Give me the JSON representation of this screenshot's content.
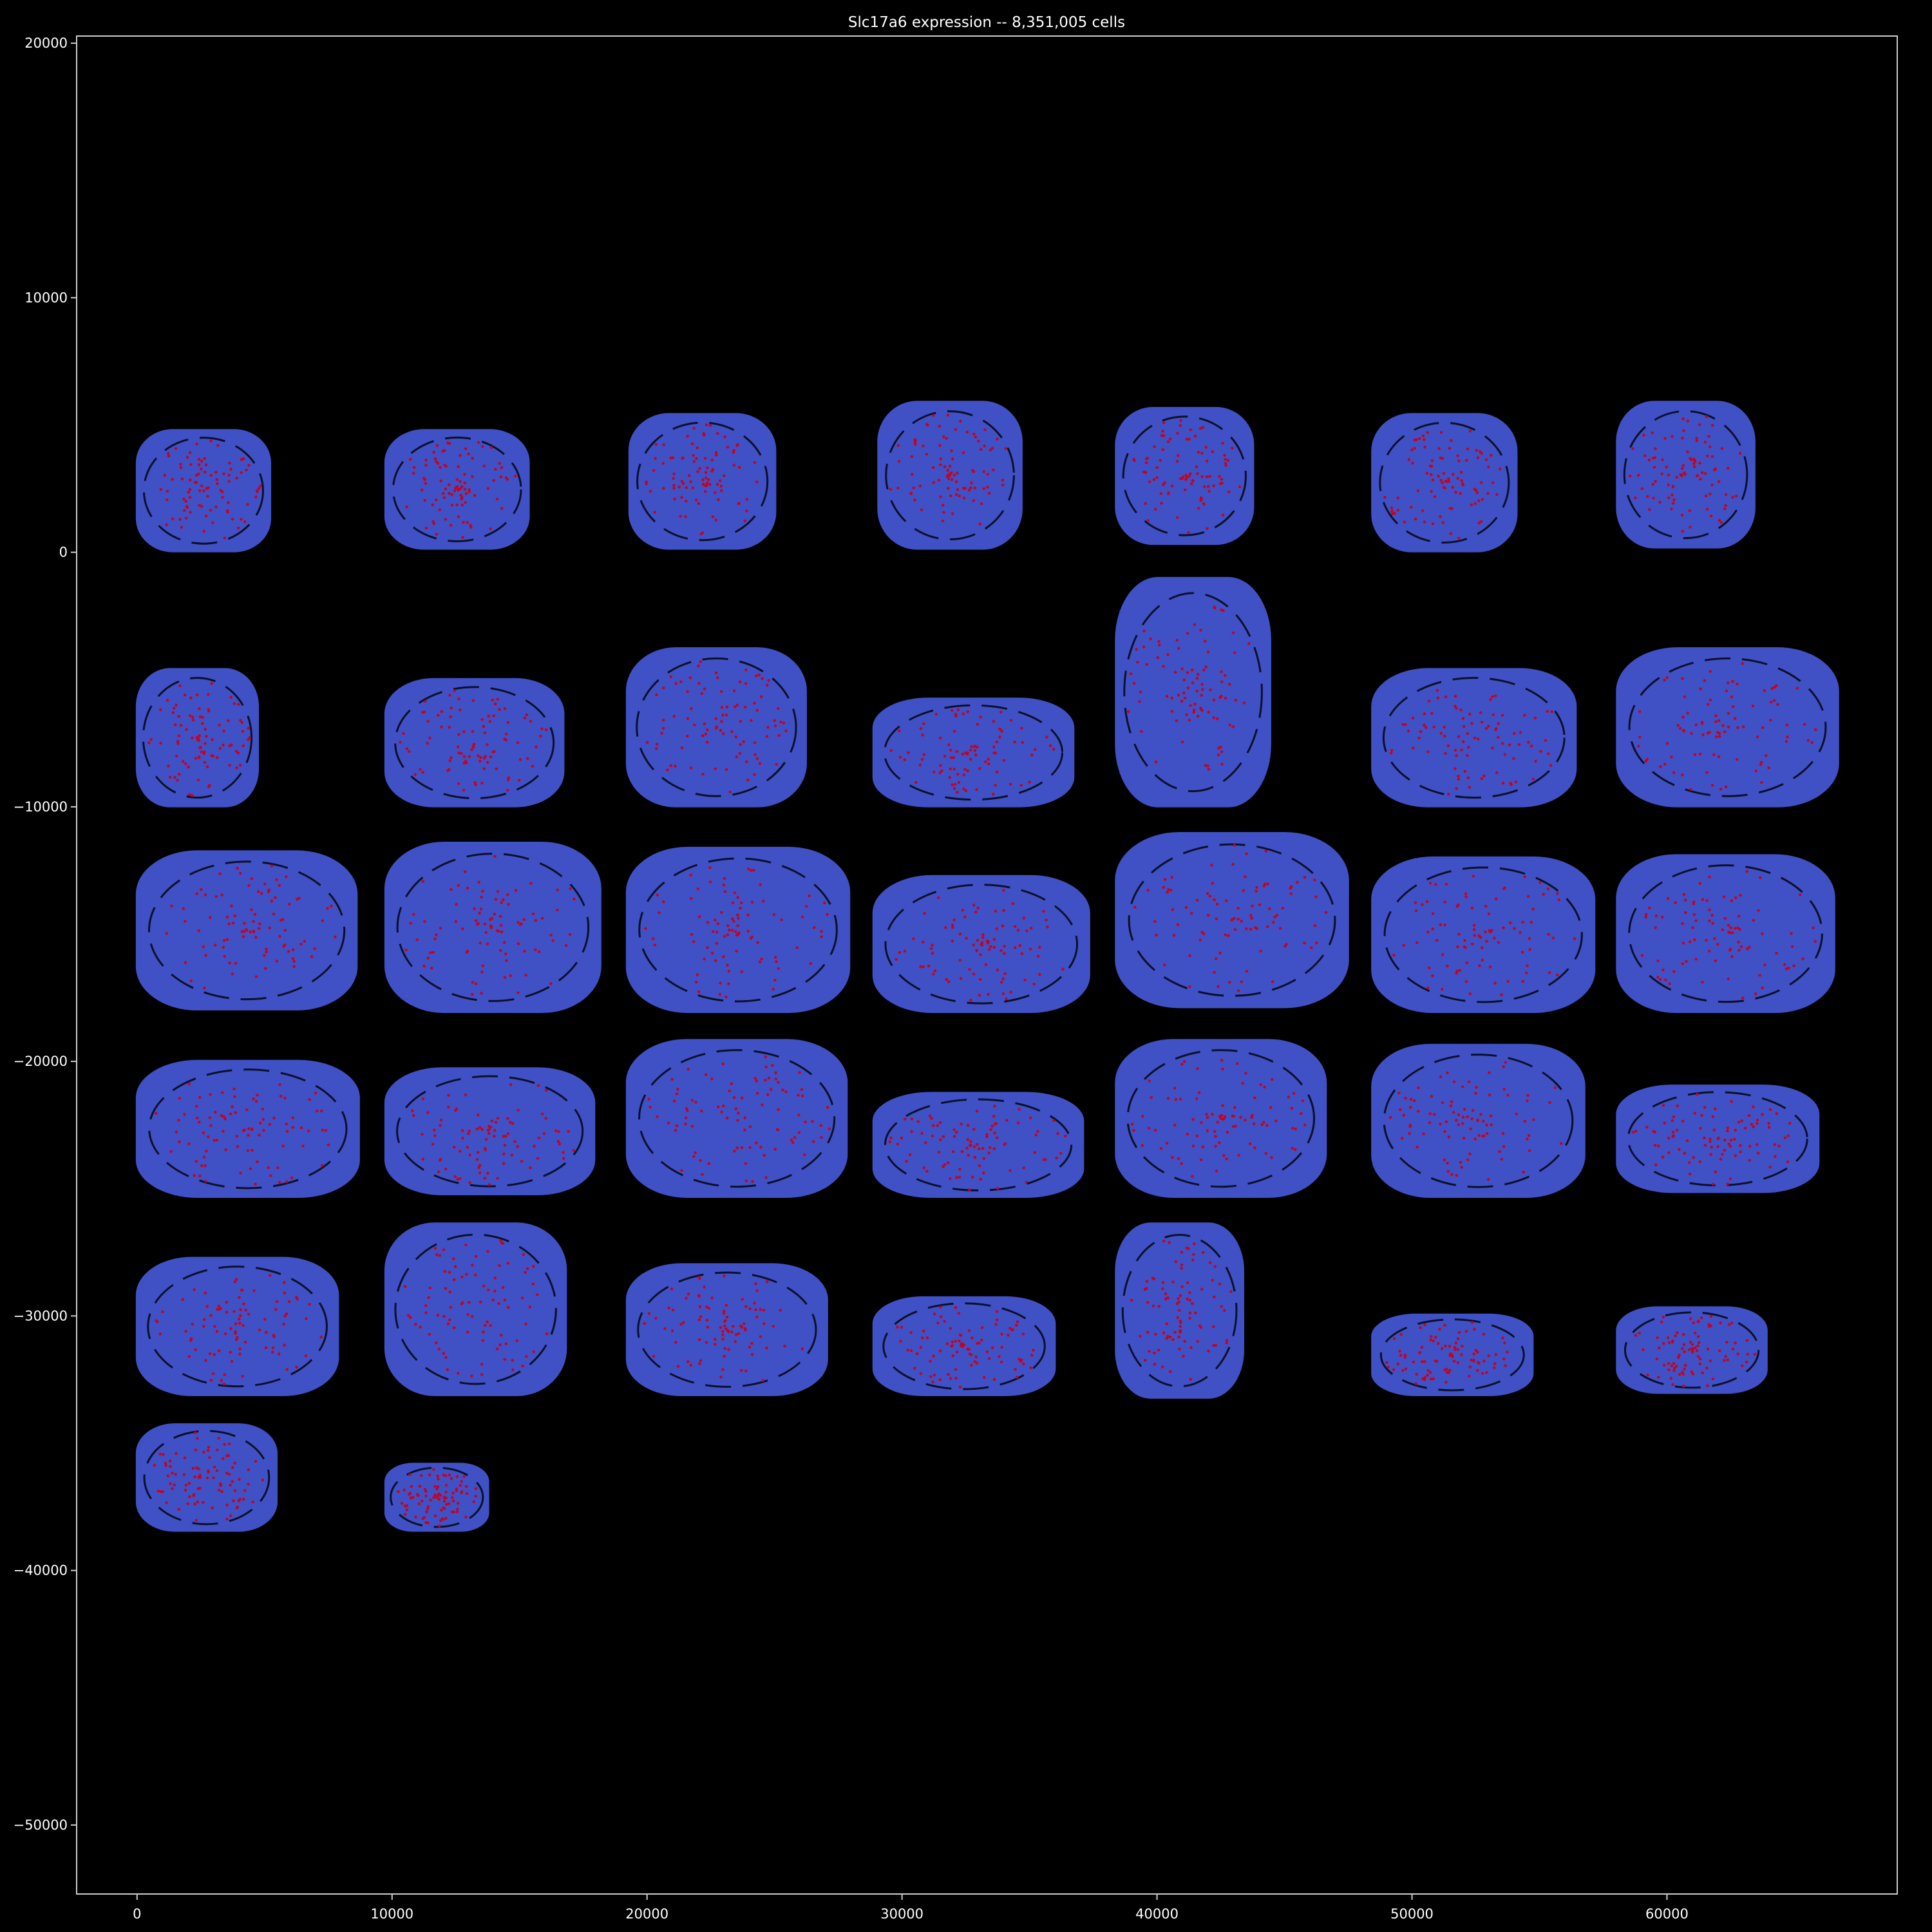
{
  "chart_data": {
    "type": "scatter",
    "title": "Slc17a6 expression -- 8,351,005 cells",
    "xlabel": "",
    "ylabel": "",
    "xlim": [
      -2370,
      69030
    ],
    "ylim": [
      -52710,
      20280
    ],
    "xticks": [
      0,
      10000,
      20000,
      30000,
      40000,
      50000,
      60000
    ],
    "xtick_labels": [
      "0",
      "10000",
      "20000",
      "30000",
      "40000",
      "50000",
      "60000"
    ],
    "yticks": [
      20000,
      10000,
      0,
      -10000,
      -20000,
      -30000,
      -40000,
      -50000
    ],
    "ytick_labels": [
      "20000",
      "10000",
      "0",
      "−10000",
      "−20000",
      "−30000",
      "−40000",
      "−50000"
    ],
    "grid": false,
    "background": "#000000",
    "colors": {
      "non_expressing": "#3f51c4",
      "expressing": "#c8001e",
      "axes": "#cccccc"
    },
    "series": [
      {
        "name": "",
        "role": "non-expressing cells",
        "color": "#3f51c4"
      },
      {
        "name": "",
        "role": "Slc17a6-expressing cells",
        "color": "#c8001e"
      }
    ],
    "sections": [
      {
        "x": [
          -50,
          5260
        ],
        "y": [
          0,
          4840
        ]
      },
      {
        "x": [
          9700,
          15400
        ],
        "y": [
          100,
          4840
        ]
      },
      {
        "x": [
          19270,
          25070
        ],
        "y": [
          100,
          5470
        ]
      },
      {
        "x": [
          29030,
          34730
        ],
        "y": [
          100,
          5950
        ]
      },
      {
        "x": [
          38350,
          43810
        ],
        "y": [
          290,
          5710
        ]
      },
      {
        "x": [
          48400,
          54140
        ],
        "y": [
          0,
          5470
        ]
      },
      {
        "x": [
          58000,
          63470
        ],
        "y": [
          150,
          5950
        ]
      },
      {
        "x": [
          -50,
          4780
        ],
        "y": [
          -10020,
          -4550
        ]
      },
      {
        "x": [
          9700,
          16760
        ],
        "y": [
          -10020,
          -4940
        ]
      },
      {
        "x": [
          19170,
          26270
        ],
        "y": [
          -10020,
          -3730
        ]
      },
      {
        "x": [
          28840,
          36760
        ],
        "y": [
          -10020,
          -5710
        ]
      },
      {
        "x": [
          38350,
          44480
        ],
        "y": [
          -10020,
          -970
        ]
      },
      {
        "x": [
          48400,
          56460
        ],
        "y": [
          -10020,
          -4550
        ]
      },
      {
        "x": [
          58000,
          66750
        ],
        "y": [
          -10020,
          -3730
        ]
      },
      {
        "x": [
          -50,
          8650
        ],
        "y": [
          -18000,
          -11710
        ]
      },
      {
        "x": [
          9700,
          18210
        ],
        "y": [
          -18100,
          -11370
        ]
      },
      {
        "x": [
          19170,
          27970
        ],
        "y": [
          -18100,
          -11570
        ]
      },
      {
        "x": [
          28840,
          37380
        ],
        "y": [
          -18100,
          -12680
        ]
      },
      {
        "x": [
          38350,
          47530
        ],
        "y": [
          -17910,
          -10990
        ]
      },
      {
        "x": [
          48400,
          57190
        ],
        "y": [
          -18100,
          -11950
        ]
      },
      {
        "x": [
          58000,
          66600
        ],
        "y": [
          -18100,
          -11860
        ]
      },
      {
        "x": [
          -50,
          8740
        ],
        "y": [
          -25360,
          -19940
        ]
      },
      {
        "x": [
          9700,
          17970
        ],
        "y": [
          -25260,
          -20230
        ]
      },
      {
        "x": [
          19170,
          27870
        ],
        "y": [
          -25360,
          -19120
        ]
      },
      {
        "x": [
          28840,
          37140
        ],
        "y": [
          -25360,
          -21200
        ]
      },
      {
        "x": [
          38350,
          46660
        ],
        "y": [
          -25360,
          -19120
        ]
      },
      {
        "x": [
          48400,
          56800
        ],
        "y": [
          -25360,
          -19310
        ]
      },
      {
        "x": [
          58000,
          65980
        ],
        "y": [
          -25170,
          -20910
        ]
      },
      {
        "x": [
          -50,
          7920
        ],
        "y": [
          -33150,
          -27680
        ]
      },
      {
        "x": [
          9700,
          16860
        ],
        "y": [
          -33150,
          -26330
        ]
      },
      {
        "x": [
          19170,
          27100
        ],
        "y": [
          -33150,
          -27930
        ]
      },
      {
        "x": [
          28840,
          36030
        ],
        "y": [
          -33150,
          -29230
        ]
      },
      {
        "x": [
          38350,
          43420
        ],
        "y": [
          -33250,
          -26330
        ]
      },
      {
        "x": [
          48400,
          54770
        ],
        "y": [
          -33150,
          -29910
        ]
      },
      {
        "x": [
          58000,
          63950
        ],
        "y": [
          -33060,
          -29620
        ]
      },
      {
        "x": [
          -50,
          5510
        ],
        "y": [
          -38480,
          -34220
        ]
      },
      {
        "x": [
          9700,
          13810
        ],
        "y": [
          -38480,
          -35770
        ]
      }
    ]
  }
}
